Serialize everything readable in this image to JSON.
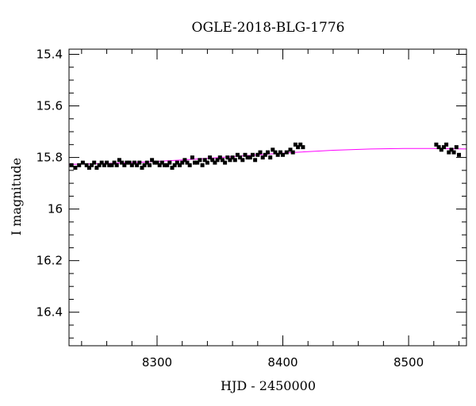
{
  "chart_data": {
    "type": "scatter",
    "title": "OGLE-2018-BLG-1776",
    "xlabel": "HJD - 2450000",
    "ylabel": "I magnitude",
    "xlim": [
      8230,
      8546
    ],
    "ylim": [
      16.53,
      15.38
    ],
    "y_inverted": true,
    "x_ticks": [
      8300,
      8400,
      8500
    ],
    "x_tick_labels": [
      "8300",
      "8400",
      "8500"
    ],
    "y_ticks": [
      15.4,
      15.6,
      15.8,
      16.0,
      16.2,
      16.4
    ],
    "y_tick_labels": [
      "15.4",
      "15.6",
      "15.8",
      "16",
      "16.2",
      "16.4"
    ],
    "x_minor_step": 20,
    "y_minor_step": 0.05,
    "grid": false,
    "series": [
      {
        "kind": "points",
        "color": "#000000",
        "x": [
          8232,
          8235,
          8238,
          8241,
          8244,
          8246,
          8248,
          8250,
          8252,
          8254,
          8256,
          8258,
          8260,
          8262,
          8264,
          8266,
          8268,
          8270,
          8272,
          8274,
          8276,
          8278,
          8280,
          8282,
          8284,
          8286,
          8288,
          8290,
          8292,
          8294,
          8296,
          8298,
          8300,
          8302,
          8304,
          8306,
          8308,
          8310,
          8312,
          8314,
          8316,
          8318,
          8320,
          8322,
          8324,
          8326,
          8328,
          8330,
          8332,
          8334,
          8336,
          8338,
          8340,
          8342,
          8344,
          8346,
          8348,
          8350,
          8352,
          8354,
          8356,
          8358,
          8360,
          8362,
          8364,
          8366,
          8368,
          8370,
          8372,
          8374,
          8376,
          8378,
          8380,
          8382,
          8384,
          8386,
          8388,
          8390,
          8392,
          8394,
          8396,
          8398,
          8400,
          8403,
          8406,
          8408,
          8410,
          8412,
          8414,
          8416,
          8522,
          8524,
          8526,
          8528,
          8530,
          8532,
          8534,
          8536,
          8538,
          8540
        ],
        "y": [
          15.83,
          15.84,
          15.83,
          15.82,
          15.83,
          15.84,
          15.83,
          15.82,
          15.84,
          15.83,
          15.82,
          15.83,
          15.82,
          15.83,
          15.83,
          15.82,
          15.83,
          15.81,
          15.82,
          15.83,
          15.82,
          15.82,
          15.83,
          15.82,
          15.83,
          15.82,
          15.84,
          15.83,
          15.82,
          15.83,
          15.81,
          15.82,
          15.82,
          15.83,
          15.82,
          15.83,
          15.83,
          15.82,
          15.84,
          15.83,
          15.82,
          15.83,
          15.82,
          15.81,
          15.82,
          15.83,
          15.8,
          15.82,
          15.82,
          15.81,
          15.83,
          15.81,
          15.82,
          15.8,
          15.81,
          15.82,
          15.81,
          15.8,
          15.81,
          15.82,
          15.8,
          15.81,
          15.8,
          15.81,
          15.79,
          15.8,
          15.81,
          15.79,
          15.8,
          15.8,
          15.79,
          15.81,
          15.79,
          15.78,
          15.8,
          15.79,
          15.78,
          15.8,
          15.77,
          15.78,
          15.79,
          15.78,
          15.79,
          15.78,
          15.77,
          15.78,
          15.75,
          15.76,
          15.75,
          15.76,
          15.75,
          15.76,
          15.77,
          15.76,
          15.75,
          15.78,
          15.77,
          15.78,
          15.76,
          15.79
        ]
      },
      {
        "kind": "model",
        "color": "#ff00ff",
        "x": [
          8230,
          8260,
          8290,
          8320,
          8350,
          8380,
          8410,
          8440,
          8470,
          8500,
          8520,
          8546
        ],
        "y": [
          15.827,
          15.823,
          15.818,
          15.81,
          15.8,
          15.79,
          15.78,
          15.772,
          15.767,
          15.765,
          15.765,
          15.767
        ]
      }
    ]
  }
}
